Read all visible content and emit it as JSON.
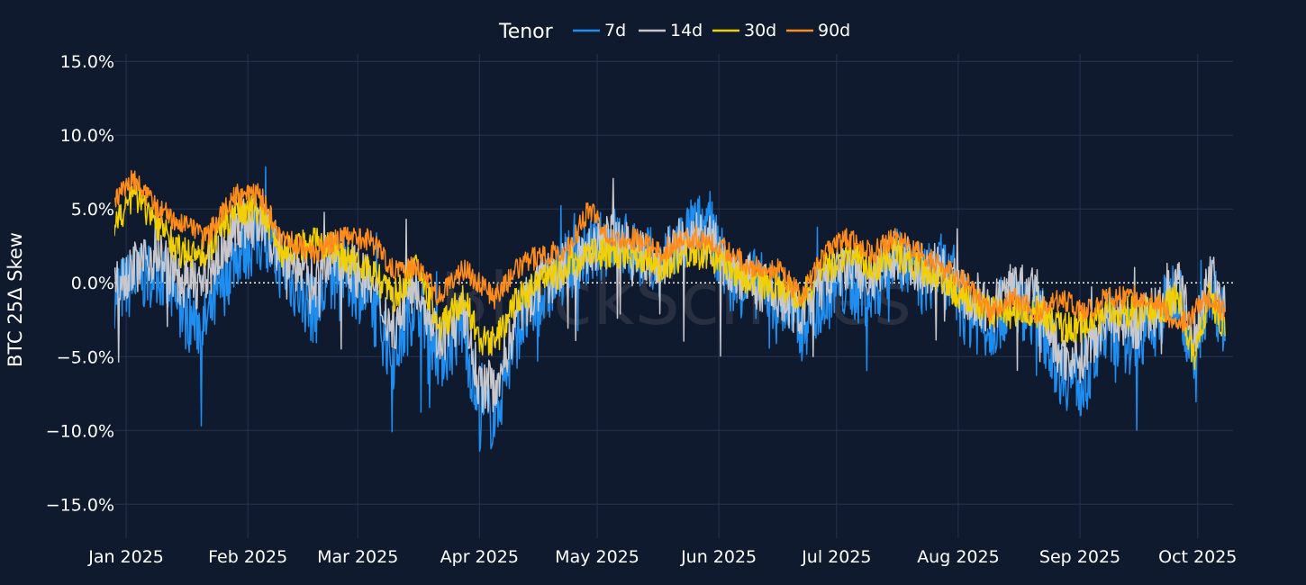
{
  "chart_data": {
    "type": "line",
    "title": "",
    "xlabel": "",
    "ylabel": "BTC 25Δ Skew",
    "ylim": [
      -17.3,
      15.5
    ],
    "yticks": [
      15,
      10,
      5,
      0,
      -5,
      -10,
      -15
    ],
    "ytick_labels": [
      "15.0%",
      "10.0%",
      "5.0%",
      "0.0%",
      "−5.0%",
      "−10.0%",
      "−15.0%"
    ],
    "xlim_days": [
      -3,
      282
    ],
    "xticks_days": [
      0,
      31,
      59,
      90,
      120,
      151,
      181,
      212,
      243,
      273
    ],
    "xtick_labels": [
      "Jan 2025",
      "Feb 2025",
      "Mar 2025",
      "Apr 2025",
      "May 2025",
      "Jun 2025",
      "Jul 2025",
      "Aug 2025",
      "Sep 2025",
      "Oct 2025"
    ],
    "zero_line": true,
    "grid": true,
    "legend": {
      "title": "Tenor",
      "placement": "top-center"
    },
    "watermark": "BlockScholes",
    "colors": {
      "background": "#101a2e",
      "grid": "#26324f"
    },
    "series": [
      {
        "name": "7d",
        "color": "#1f8ef1",
        "x": [
          -5,
          2,
          8,
          14,
          20,
          28,
          34,
          40,
          48,
          54,
          62,
          68,
          74,
          80,
          86,
          90,
          94,
          100,
          106,
          112,
          118,
          124,
          130,
          136,
          142,
          148,
          154,
          160,
          166,
          172,
          178,
          184,
          190,
          196,
          202,
          208,
          214,
          220,
          226,
          232,
          238,
          244,
          250,
          256,
          262,
          268,
          272,
          276,
          280
        ],
        "values": [
          -1,
          0,
          1,
          -2,
          -3,
          2,
          3,
          1,
          -2,
          1,
          -1,
          -5,
          -1,
          -5,
          -3,
          -9,
          -9,
          -3,
          -1,
          1,
          2,
          3,
          2,
          1,
          3,
          4,
          0,
          0,
          -1,
          -3,
          -1,
          0,
          -1,
          2,
          0,
          1,
          -2,
          -3,
          -1,
          -2,
          -6,
          -7,
          -3,
          -4,
          -3,
          0,
          -6,
          0,
          -3
        ]
      },
      {
        "name": "14d",
        "color": "#c8c8cc",
        "x": [
          -5,
          2,
          8,
          14,
          20,
          28,
          34,
          40,
          48,
          54,
          62,
          68,
          74,
          80,
          86,
          90,
          94,
          100,
          106,
          112,
          118,
          124,
          130,
          136,
          142,
          148,
          154,
          160,
          166,
          172,
          178,
          184,
          190,
          196,
          202,
          208,
          214,
          220,
          226,
          232,
          238,
          244,
          250,
          256,
          262,
          268,
          272,
          276,
          280
        ],
        "values": [
          0,
          1,
          2,
          0,
          0,
          4,
          4,
          2,
          0,
          2,
          0,
          -3,
          0,
          -4,
          -2,
          -7,
          -7,
          -2,
          0,
          1,
          2,
          3,
          2,
          1,
          3,
          3,
          1,
          0,
          -1,
          -2,
          0,
          1,
          0,
          2,
          1,
          1,
          -1,
          -2,
          0,
          -1,
          -5,
          -5,
          -2,
          -3,
          -2,
          0,
          -4,
          1,
          -2
        ]
      },
      {
        "name": "30d",
        "color": "#f2d000",
        "x": [
          -5,
          2,
          8,
          14,
          20,
          28,
          34,
          40,
          48,
          54,
          62,
          68,
          74,
          80,
          86,
          90,
          94,
          100,
          106,
          112,
          118,
          124,
          130,
          136,
          142,
          148,
          154,
          160,
          166,
          172,
          178,
          184,
          190,
          196,
          202,
          208,
          214,
          220,
          226,
          232,
          238,
          244,
          250,
          256,
          262,
          268,
          272,
          276,
          280
        ],
        "values": [
          3,
          6,
          4,
          2,
          2,
          5,
          5,
          2,
          3,
          2,
          1,
          -1,
          1,
          -3,
          -1,
          -4,
          -4,
          -1,
          0,
          1,
          2,
          2,
          2,
          1,
          2,
          2,
          1,
          0,
          0,
          -1,
          1,
          2,
          1,
          2,
          1,
          0,
          -1,
          -2,
          -2,
          -2,
          -3,
          -3,
          -2,
          -2,
          -2,
          -1,
          -5,
          -1,
          -3
        ]
      },
      {
        "name": "90d",
        "color": "#ff8c1a",
        "x": [
          -5,
          2,
          8,
          14,
          20,
          28,
          34,
          40,
          48,
          54,
          62,
          68,
          74,
          80,
          86,
          90,
          94,
          100,
          106,
          112,
          118,
          124,
          130,
          136,
          142,
          148,
          154,
          160,
          166,
          172,
          178,
          184,
          190,
          196,
          202,
          208,
          214,
          220,
          226,
          232,
          238,
          244,
          250,
          256,
          262,
          268,
          272,
          276,
          280
        ],
        "values": [
          5,
          7,
          5,
          4,
          3,
          6,
          6,
          3,
          2,
          3,
          3,
          1,
          1,
          -1,
          1,
          0,
          -1,
          1,
          2,
          2,
          5,
          3,
          3,
          2,
          3,
          3,
          2,
          1,
          1,
          -1,
          2,
          3,
          2,
          3,
          2,
          1,
          0,
          -2,
          -1,
          -2,
          -1,
          -2,
          -1,
          -1,
          -1,
          -3,
          -2,
          -1,
          -2
        ]
      }
    ]
  }
}
